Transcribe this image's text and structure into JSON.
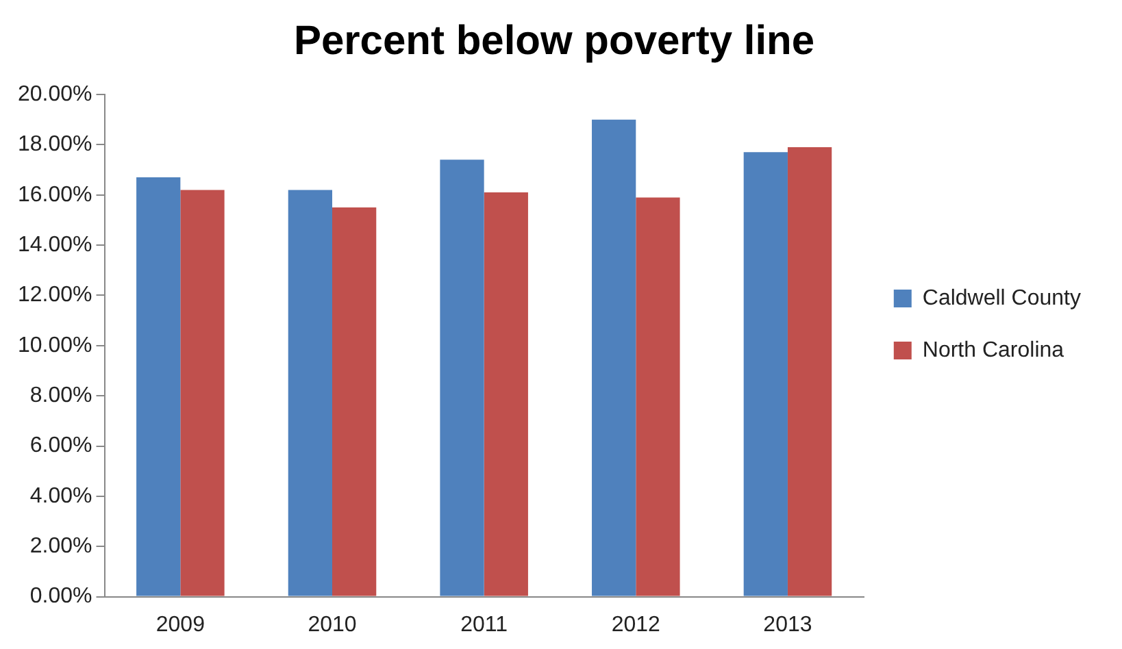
{
  "chart_data": {
    "type": "bar",
    "title": "Percent below poverty line",
    "categories": [
      "2009",
      "2010",
      "2011",
      "2012",
      "2013"
    ],
    "series": [
      {
        "name": "Caldwell County",
        "color": "#4f81bd",
        "values": [
          16.7,
          16.2,
          17.4,
          19.0,
          17.7
        ]
      },
      {
        "name": "North Carolina",
        "color": "#c0504d",
        "values": [
          16.2,
          15.5,
          16.1,
          15.9,
          17.9
        ]
      }
    ],
    "ylim": [
      0,
      20
    ],
    "yticks": [
      {
        "value": 0,
        "label": "0.00%"
      },
      {
        "value": 2,
        "label": "2.00%"
      },
      {
        "value": 4,
        "label": "4.00%"
      },
      {
        "value": 6,
        "label": "6.00%"
      },
      {
        "value": 8,
        "label": "8.00%"
      },
      {
        "value": 10,
        "label": "10.00%"
      },
      {
        "value": 12,
        "label": "12.00%"
      },
      {
        "value": 14,
        "label": "14.00%"
      },
      {
        "value": 16,
        "label": "16.00%"
      },
      {
        "value": 18,
        "label": "18.00%"
      },
      {
        "value": 20,
        "label": "20.00%"
      }
    ],
    "legend": "right",
    "grid": false
  }
}
